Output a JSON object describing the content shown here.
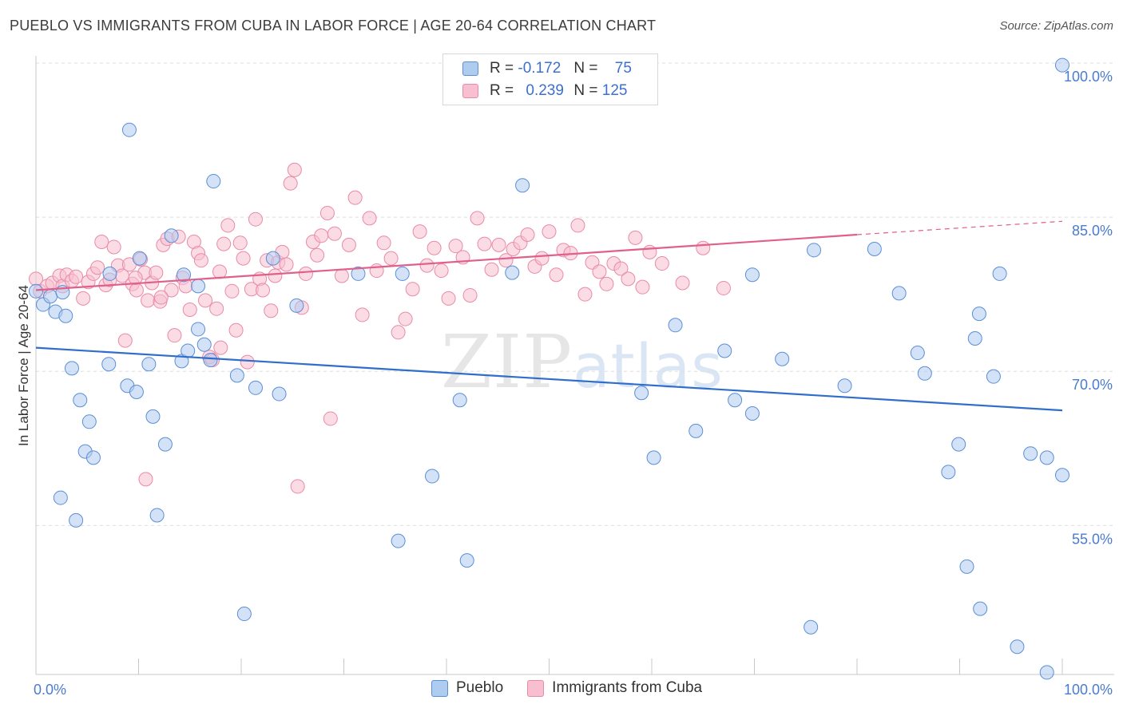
{
  "title": "PUEBLO VS IMMIGRANTS FROM CUBA IN LABOR FORCE | AGE 20-64 CORRELATION CHART",
  "source": "Source: ZipAtlas.com",
  "watermark": {
    "zip": "ZIP",
    "atlas": "atlas"
  },
  "legend_stats": [
    {
      "r_label": "R =",
      "r_value": "-0.172",
      "n_label": "N =",
      "n_value": "75"
    },
    {
      "r_label": "R =",
      "r_value": "0.239",
      "n_label": "N =",
      "n_value": "125"
    }
  ],
  "colors": {
    "pueblo_fill": "#aecbf0",
    "pueblo_stroke": "#5a8fd6",
    "pueblo_line": "#2f6fcb",
    "cuba_fill": "#f7bfd0",
    "cuba_stroke": "#e98aa8",
    "cuba_line": "#e0608b",
    "grid": "#dedede",
    "tick_text": "#4a7bd0"
  },
  "chart_data": {
    "type": "scatter",
    "xlabel": "",
    "ylabel": "In Labor Force | Age 20-64",
    "x_tick_labels": [
      "0.0%",
      "100.0%"
    ],
    "y_tick_labels": [
      "55.0%",
      "70.0%",
      "85.0%",
      "100.0%"
    ],
    "y_ticks": [
      55,
      70,
      85,
      100
    ],
    "xlim": [
      0,
      100
    ],
    "ylim": [
      40.5,
      100.7
    ],
    "grid": true,
    "legend_position": "bottom",
    "series": [
      {
        "name": "Pueblo",
        "trend": {
          "x": [
            0,
            100
          ],
          "y": [
            72.3,
            66.2
          ]
        },
        "points": [
          [
            0,
            77.8
          ],
          [
            0.7,
            76.5
          ],
          [
            1.9,
            75.8
          ],
          [
            2.9,
            75.4
          ],
          [
            1.4,
            77.3
          ],
          [
            2.6,
            77.7
          ],
          [
            3.5,
            70.3
          ],
          [
            4.3,
            67.2
          ],
          [
            5.2,
            65.1
          ],
          [
            4.8,
            62.2
          ],
          [
            5.6,
            61.6
          ],
          [
            2.4,
            57.7
          ],
          [
            3.9,
            55.5
          ],
          [
            9.1,
            93.5
          ],
          [
            17.3,
            88.5
          ],
          [
            10.1,
            81.0
          ],
          [
            13.2,
            83.2
          ],
          [
            14.4,
            79.4
          ],
          [
            15.8,
            78.3
          ],
          [
            7.2,
            79.5
          ],
          [
            7.1,
            70.7
          ],
          [
            8.9,
            68.6
          ],
          [
            9.8,
            68.0
          ],
          [
            11.0,
            70.7
          ],
          [
            11.4,
            65.6
          ],
          [
            12.6,
            62.9
          ],
          [
            11.8,
            56.0
          ],
          [
            14.2,
            71.0
          ],
          [
            14.8,
            72.0
          ],
          [
            15.8,
            74.1
          ],
          [
            16.4,
            72.6
          ],
          [
            17.0,
            71.1
          ],
          [
            19.6,
            69.6
          ],
          [
            21.4,
            68.4
          ],
          [
            23.1,
            81.0
          ],
          [
            23.7,
            67.8
          ],
          [
            25.4,
            76.4
          ],
          [
            20.3,
            46.4
          ],
          [
            31.4,
            79.5
          ],
          [
            35.7,
            79.5
          ],
          [
            35.3,
            53.5
          ],
          [
            38.6,
            59.8
          ],
          [
            41.3,
            67.2
          ],
          [
            42.0,
            51.6
          ],
          [
            46.4,
            79.6
          ],
          [
            47.4,
            88.1
          ],
          [
            59.0,
            67.9
          ],
          [
            60.2,
            61.6
          ],
          [
            62.3,
            74.5
          ],
          [
            64.3,
            64.2
          ],
          [
            67.1,
            72.0
          ],
          [
            68.1,
            67.2
          ],
          [
            69.8,
            65.9
          ],
          [
            69.8,
            79.4
          ],
          [
            72.7,
            71.2
          ],
          [
            75.5,
            45.1
          ],
          [
            75.8,
            81.8
          ],
          [
            78.8,
            68.6
          ],
          [
            81.7,
            81.9
          ],
          [
            84.1,
            77.6
          ],
          [
            85.9,
            71.8
          ],
          [
            86.6,
            69.8
          ],
          [
            88.9,
            60.2
          ],
          [
            89.9,
            62.9
          ],
          [
            90.7,
            51.0
          ],
          [
            92.0,
            46.9
          ],
          [
            91.5,
            73.2
          ],
          [
            91.9,
            75.6
          ],
          [
            93.3,
            69.5
          ],
          [
            93.9,
            79.5
          ],
          [
            95.6,
            43.2
          ],
          [
            96.9,
            62.0
          ],
          [
            98.5,
            61.6
          ],
          [
            100.0,
            59.9
          ],
          [
            98.5,
            40.7
          ],
          [
            100.0,
            99.8
          ]
        ]
      },
      {
        "name": "Immigrants from Cuba",
        "trend": {
          "x": [
            0,
            80,
            100
          ],
          "y": [
            77.9,
            83.3,
            84.6
          ]
        },
        "points": [
          [
            0,
            79.0
          ],
          [
            0.4,
            77.8
          ],
          [
            1.1,
            78.3
          ],
          [
            1.6,
            78.6
          ],
          [
            2.3,
            79.3
          ],
          [
            2.6,
            78.3
          ],
          [
            3.0,
            79.4
          ],
          [
            3.5,
            78.8
          ],
          [
            3.9,
            79.2
          ],
          [
            4.6,
            77.1
          ],
          [
            5.1,
            78.7
          ],
          [
            5.6,
            79.5
          ],
          [
            6.0,
            80.1
          ],
          [
            6.4,
            82.6
          ],
          [
            6.8,
            78.4
          ],
          [
            7.2,
            78.9
          ],
          [
            7.6,
            82.1
          ],
          [
            8.0,
            80.3
          ],
          [
            8.4,
            79.3
          ],
          [
            8.7,
            73.0
          ],
          [
            9.1,
            80.4
          ],
          [
            9.4,
            78.5
          ],
          [
            9.8,
            77.9
          ],
          [
            10.2,
            80.9
          ],
          [
            10.6,
            79.6
          ],
          [
            10.9,
            76.9
          ],
          [
            11.3,
            78.6
          ],
          [
            11.7,
            79.6
          ],
          [
            12.1,
            76.8
          ],
          [
            12.4,
            82.3
          ],
          [
            12.8,
            82.9
          ],
          [
            13.2,
            77.9
          ],
          [
            13.5,
            73.5
          ],
          [
            13.9,
            83.1
          ],
          [
            14.3,
            79.1
          ],
          [
            14.6,
            78.3
          ],
          [
            15.0,
            76.0
          ],
          [
            15.4,
            82.6
          ],
          [
            15.8,
            81.5
          ],
          [
            16.1,
            80.8
          ],
          [
            16.5,
            76.9
          ],
          [
            16.9,
            71.4
          ],
          [
            17.2,
            71.1
          ],
          [
            17.6,
            76.1
          ],
          [
            18.0,
            72.3
          ],
          [
            18.3,
            82.4
          ],
          [
            18.7,
            84.2
          ],
          [
            19.1,
            77.8
          ],
          [
            19.5,
            74.0
          ],
          [
            19.9,
            82.5
          ],
          [
            20.2,
            81.0
          ],
          [
            20.6,
            70.9
          ],
          [
            21.0,
            78.0
          ],
          [
            21.4,
            84.8
          ],
          [
            21.8,
            79.0
          ],
          [
            22.1,
            77.9
          ],
          [
            22.5,
            80.8
          ],
          [
            22.9,
            75.9
          ],
          [
            23.3,
            79.3
          ],
          [
            23.6,
            80.6
          ],
          [
            24.0,
            81.6
          ],
          [
            24.4,
            80.4
          ],
          [
            24.8,
            88.3
          ],
          [
            25.2,
            89.6
          ],
          [
            25.5,
            58.8
          ],
          [
            25.9,
            76.2
          ],
          [
            26.3,
            79.5
          ],
          [
            27.0,
            82.6
          ],
          [
            27.4,
            81.3
          ],
          [
            27.8,
            83.2
          ],
          [
            28.4,
            85.4
          ],
          [
            29.1,
            83.4
          ],
          [
            29.8,
            79.3
          ],
          [
            30.5,
            82.3
          ],
          [
            31.1,
            86.9
          ],
          [
            31.8,
            75.5
          ],
          [
            32.5,
            84.9
          ],
          [
            33.2,
            79.8
          ],
          [
            33.9,
            82.5
          ],
          [
            34.6,
            81.0
          ],
          [
            35.3,
            73.8
          ],
          [
            36.0,
            75.1
          ],
          [
            36.7,
            78.0
          ],
          [
            37.4,
            83.6
          ],
          [
            38.1,
            80.3
          ],
          [
            38.8,
            82.0
          ],
          [
            39.5,
            79.8
          ],
          [
            40.2,
            77.1
          ],
          [
            40.9,
            82.2
          ],
          [
            41.6,
            81.1
          ],
          [
            42.3,
            77.4
          ],
          [
            43.0,
            84.9
          ],
          [
            43.7,
            82.4
          ],
          [
            44.4,
            79.9
          ],
          [
            45.1,
            82.3
          ],
          [
            45.8,
            80.8
          ],
          [
            46.5,
            81.9
          ],
          [
            47.2,
            82.5
          ],
          [
            47.9,
            83.3
          ],
          [
            48.6,
            80.2
          ],
          [
            49.3,
            81.0
          ],
          [
            50.0,
            83.6
          ],
          [
            50.7,
            79.4
          ],
          [
            51.4,
            81.8
          ],
          [
            52.1,
            81.5
          ],
          [
            52.8,
            84.2
          ],
          [
            53.5,
            77.5
          ],
          [
            54.2,
            80.6
          ],
          [
            54.9,
            79.7
          ],
          [
            55.6,
            78.5
          ],
          [
            56.3,
            80.5
          ],
          [
            57.0,
            80.0
          ],
          [
            57.7,
            79.0
          ],
          [
            58.4,
            83.0
          ],
          [
            59.1,
            78.2
          ],
          [
            59.8,
            81.6
          ],
          [
            61.0,
            80.5
          ],
          [
            63.0,
            78.6
          ],
          [
            65.0,
            82.0
          ],
          [
            67.0,
            78.1
          ],
          [
            10.7,
            59.5
          ],
          [
            12.2,
            77.2
          ],
          [
            28.7,
            65.4
          ],
          [
            9.7,
            79.1
          ],
          [
            17.9,
            79.7
          ]
        ]
      }
    ]
  }
}
